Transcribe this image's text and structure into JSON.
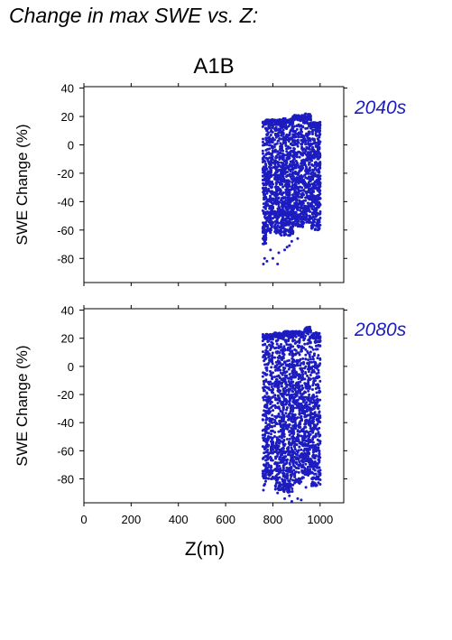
{
  "figure_title": "Change in max SWE vs. Z:",
  "scenario": "A1B",
  "colors": {
    "points": "#1c1cc0",
    "label": "#1c1cc0",
    "axis": "#000000"
  },
  "chart_data": [
    {
      "type": "scatter",
      "period_label": "2040s",
      "ylabel": "SWE Change (%)",
      "xlabel": "",
      "xlim": [
        0,
        1100
      ],
      "ylim": [
        -97,
        41
      ],
      "yticks": [
        40,
        20,
        0,
        -20,
        -40,
        -60,
        -80
      ],
      "xticks": [],
      "marker": "small filled circles",
      "point_groups": [
        {
          "x_range": [
            758,
            770
          ],
          "y_range": [
            -70,
            17
          ]
        },
        {
          "x_range": [
            771,
            800
          ],
          "y_range": [
            -62,
            18
          ]
        },
        {
          "x_range": [
            808,
            845
          ],
          "y_range": [
            -64,
            18
          ]
        },
        {
          "x_range": [
            845,
            885
          ],
          "y_range": [
            -64,
            19
          ]
        },
        {
          "x_range": [
            885,
            930
          ],
          "y_range": [
            -58,
            21
          ]
        },
        {
          "x_range": [
            935,
            960
          ],
          "y_range": [
            -55,
            22
          ]
        },
        {
          "x_range": [
            965,
            1000
          ],
          "y_range": [
            -60,
            16
          ]
        }
      ],
      "outliers": [
        {
          "x": 760,
          "y": -84
        },
        {
          "x": 765,
          "y": -80
        },
        {
          "x": 775,
          "y": -82
        },
        {
          "x": 800,
          "y": -80
        },
        {
          "x": 820,
          "y": -84
        },
        {
          "x": 825,
          "y": -76
        },
        {
          "x": 850,
          "y": -74
        },
        {
          "x": 870,
          "y": -71
        },
        {
          "x": 880,
          "y": -68
        },
        {
          "x": 905,
          "y": -66
        },
        {
          "x": 860,
          "y": -72
        },
        {
          "x": 790,
          "y": -74
        }
      ]
    },
    {
      "type": "scatter",
      "period_label": "2080s",
      "ylabel": "SWE Change (%)",
      "xlabel": "Z(m)",
      "xlim": [
        0,
        1100
      ],
      "ylim": [
        -97,
        41
      ],
      "yticks": [
        40,
        20,
        0,
        -20,
        -40,
        -60,
        -80
      ],
      "xticks": [
        0,
        200,
        400,
        600,
        800,
        1000
      ],
      "marker": "small filled circles",
      "point_groups": [
        {
          "x_range": [
            758,
            770
          ],
          "y_range": [
            -86,
            23
          ]
        },
        {
          "x_range": [
            771,
            800
          ],
          "y_range": [
            -80,
            23
          ]
        },
        {
          "x_range": [
            808,
            845
          ],
          "y_range": [
            -88,
            24
          ]
        },
        {
          "x_range": [
            845,
            885
          ],
          "y_range": [
            -90,
            25
          ]
        },
        {
          "x_range": [
            885,
            930
          ],
          "y_range": [
            -84,
            25
          ]
        },
        {
          "x_range": [
            935,
            960
          ],
          "y_range": [
            -78,
            28
          ]
        },
        {
          "x_range": [
            965,
            1000
          ],
          "y_range": [
            -85,
            24
          ]
        }
      ],
      "outliers": [
        {
          "x": 850,
          "y": -94
        },
        {
          "x": 870,
          "y": -92
        },
        {
          "x": 880,
          "y": -96
        },
        {
          "x": 905,
          "y": -94
        },
        {
          "x": 920,
          "y": -95
        },
        {
          "x": 820,
          "y": -90
        },
        {
          "x": 760,
          "y": -88
        },
        {
          "x": 940,
          "y": -86
        }
      ]
    }
  ]
}
